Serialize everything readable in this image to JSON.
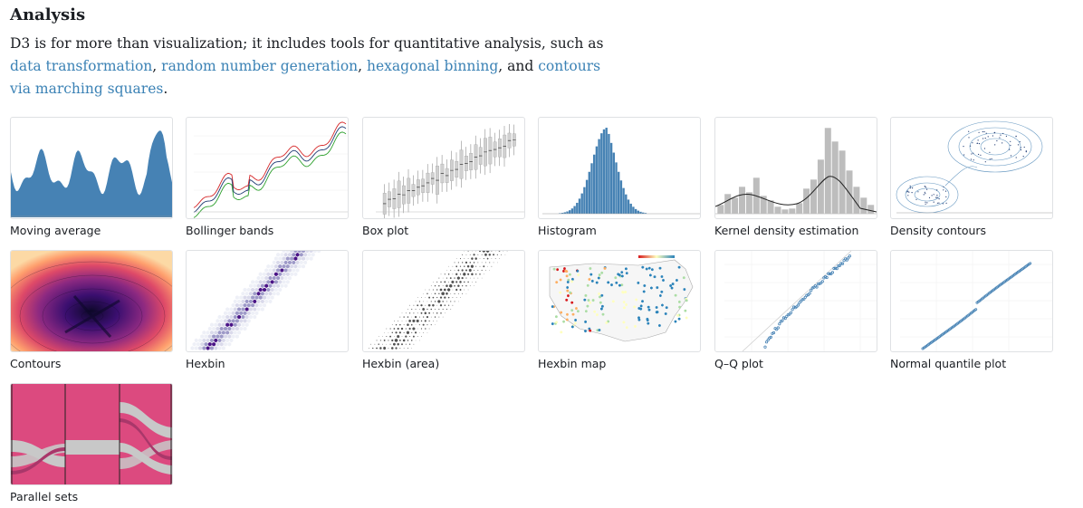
{
  "section": {
    "title": "Analysis",
    "intro": {
      "text_before": "D3 is for more than visualization; it includes tools for quantitative analysis, such as ",
      "links": [
        "data transformation",
        "random number generation",
        "hexagonal binning",
        "contours via marching squares"
      ],
      "sep1": ", ",
      "sep2": ", ",
      "sep3": ", and ",
      "text_after": "."
    }
  },
  "examples": [
    {
      "label": "Moving average",
      "icon": "area-chart-thumbnail"
    },
    {
      "label": "Bollinger bands",
      "icon": "line-chart-thumbnail"
    },
    {
      "label": "Box plot",
      "icon": "box-plot-thumbnail"
    },
    {
      "label": "Histogram",
      "icon": "histogram-thumbnail"
    },
    {
      "label": "Kernel density estimation",
      "icon": "density-histogram-thumbnail"
    },
    {
      "label": "Density contours",
      "icon": "contour-scatter-thumbnail"
    },
    {
      "label": "Contours",
      "icon": "filled-contour-thumbnail"
    },
    {
      "label": "Hexbin",
      "icon": "hexbin-thumbnail"
    },
    {
      "label": "Hexbin (area)",
      "icon": "hexbin-area-thumbnail"
    },
    {
      "label": "Hexbin map",
      "icon": "us-map-thumbnail"
    },
    {
      "label": "Q–Q plot",
      "icon": "qq-plot-thumbnail"
    },
    {
      "label": "Normal quantile plot",
      "icon": "quantile-plot-thumbnail"
    },
    {
      "label": "Parallel sets",
      "icon": "parallel-sets-thumbnail"
    }
  ],
  "colors": {
    "link": "#3b82b5",
    "accent_blue": "#4682b4",
    "accent_pink": "#dc4a7f",
    "gray": "#bdbdbd"
  }
}
